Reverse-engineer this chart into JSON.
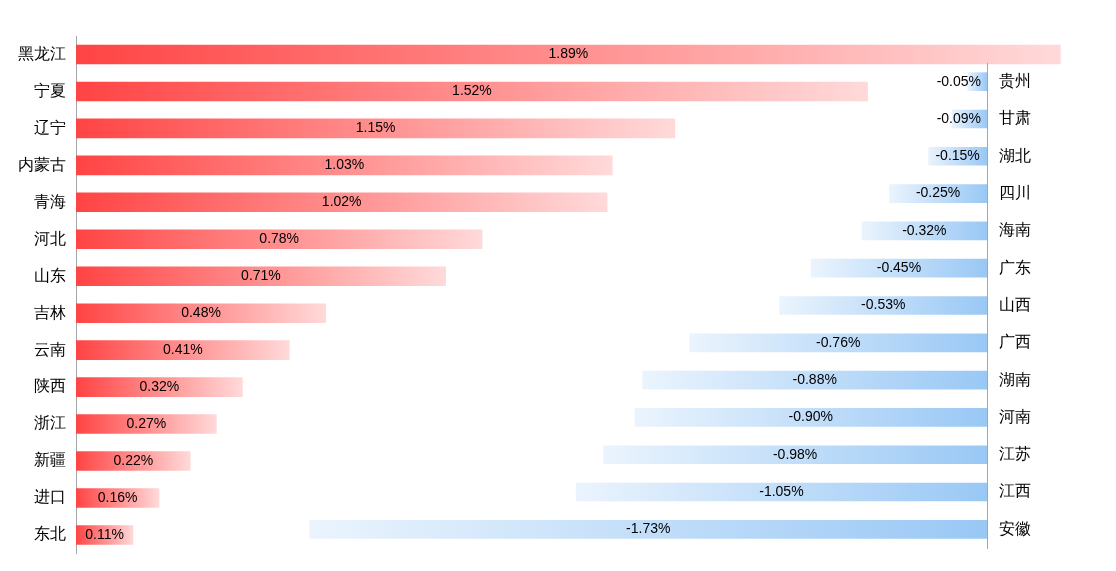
{
  "chart_data": [
    {
      "type": "bar",
      "orientation": "horizontal",
      "categories": [
        "黑龙江",
        "宁夏",
        "辽宁",
        "内蒙古",
        "青海",
        "河北",
        "山东",
        "吉林",
        "云南",
        "陕西",
        "浙江",
        "新疆",
        "进口",
        "东北"
      ],
      "series": [
        {
          "color": "#ff4444",
          "values": [
            1.89,
            1.52,
            1.15,
            1.03,
            1.02,
            0.78,
            0.71,
            0.48,
            0.41,
            0.32,
            0.27,
            0.22,
            0.16,
            0.11
          ],
          "value_labels": [
            "1.89%",
            "1.52%",
            "1.15%",
            "1.03%",
            "1.02%",
            "0.78%",
            "0.71%",
            "0.48%",
            "0.41%",
            "0.32%",
            "0.27%",
            "0.22%",
            "0.16%",
            "0.11%"
          ]
        }
      ],
      "tick_labels": "y"
    },
    {
      "type": "bar",
      "orientation": "horizontal",
      "categories": [
        "贵州",
        "甘肃",
        "湖北",
        "四川",
        "海南",
        "广东",
        "山西",
        "广西",
        "湖南",
        "河南",
        "江苏",
        "江西",
        "安徽"
      ],
      "series": [
        {
          "color": "#99c8f5",
          "values": [
            -0.05,
            -0.09,
            -0.15,
            -0.25,
            -0.32,
            -0.45,
            -0.53,
            -0.76,
            -0.88,
            -0.9,
            -0.98,
            -1.05,
            -1.73
          ],
          "value_labels": [
            "-0.05%",
            "-0.09%",
            "-0.15%",
            "-0.25%",
            "-0.32%",
            "-0.45%",
            "-0.53%",
            "-0.76%",
            "-0.88%",
            "-0.90%",
            "-0.98%",
            "-1.05%",
            "-1.73%"
          ]
        }
      ],
      "tick_labels": "y"
    }
  ]
}
